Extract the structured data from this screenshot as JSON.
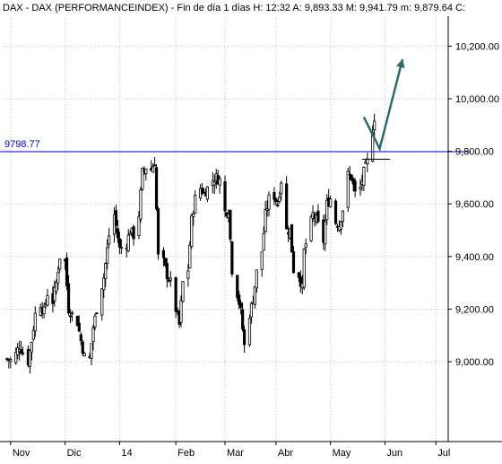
{
  "header": {
    "text": "DAX - DAX (PERFORMANCEINDEX) - Fin de día 1 días  H: 12:32  A: 9,893.33  M: 9,941.79  m: 9,879.64  C:"
  },
  "colors": {
    "background": "#ffffff",
    "candle_up": "#ffffff",
    "candle_down": "#000000",
    "candle_outline": "#000000",
    "resistance": "#0000cc",
    "arrow": "#2f6b6b",
    "grid": "#bfbfbf"
  },
  "chart_data": {
    "type": "candlestick",
    "title": "DAX - DAX (PERFORMANCEINDEX)",
    "y_axis": {
      "side": "right",
      "ticks": [
        "10,200.00",
        "10,000.00",
        "9,800.00",
        "9,600.00",
        "9,400.00",
        "9,200.00",
        "9,000.00"
      ],
      "tick_values": [
        10200,
        10000,
        9800,
        9600,
        9400,
        9200,
        9000
      ],
      "ylim": [
        8850,
        10350
      ]
    },
    "x_axis": {
      "ticks": [
        "Nov",
        "Dic",
        "14",
        "Feb",
        "Mar",
        "Abr",
        "May",
        "Jun",
        "Jul"
      ],
      "tick_dates": [
        "2013-11-01",
        "2013-12-02",
        "2014-01-02",
        "2014-02-03",
        "2014-03-03",
        "2014-04-01",
        "2014-05-02",
        "2014-06-02",
        "2014-07-01"
      ]
    },
    "grid": true,
    "resistance_line": {
      "value": 9798.77,
      "label": "9798.77"
    },
    "projection": {
      "points": [
        {
          "date": "2014-05-21",
          "value": 9930
        },
        {
          "date": "2014-05-30",
          "value": 9810
        },
        {
          "date": "2014-06-12",
          "value": 10150
        }
      ]
    },
    "short_level": {
      "start": "2014-05-20",
      "end": "2014-06-05",
      "value": 9770
    },
    "closes": [
      [
        "2013-10-30",
        9010
      ],
      [
        "2013-11-01",
        9005
      ],
      [
        "2013-11-04",
        9030
      ],
      [
        "2013-11-06",
        9060
      ],
      [
        "2013-11-08",
        9035
      ],
      [
        "2013-11-11",
        9000
      ],
      [
        "2013-11-13",
        9080
      ],
      [
        "2013-11-15",
        9180
      ],
      [
        "2013-11-18",
        9220
      ],
      [
        "2013-11-20",
        9190
      ],
      [
        "2013-11-22",
        9260
      ],
      [
        "2013-11-25",
        9230
      ],
      [
        "2013-11-27",
        9300
      ],
      [
        "2013-11-29",
        9400
      ],
      [
        "2013-12-02",
        9380
      ],
      [
        "2013-12-04",
        9200
      ],
      [
        "2013-12-06",
        9180
      ],
      [
        "2013-12-09",
        9150
      ],
      [
        "2013-12-11",
        9080
      ],
      [
        "2013-12-13",
        9020
      ],
      [
        "2013-12-16",
        9010
      ],
      [
        "2013-12-18",
        9130
      ],
      [
        "2013-12-20",
        9200
      ],
      [
        "2013-12-24",
        9320
      ],
      [
        "2013-12-27",
        9480
      ],
      [
        "2013-12-30",
        9560
      ],
      [
        "2014-01-02",
        9430
      ],
      [
        "2014-01-06",
        9450
      ],
      [
        "2014-01-08",
        9500
      ],
      [
        "2014-01-10",
        9480
      ],
      [
        "2014-01-13",
        9560
      ],
      [
        "2014-01-15",
        9720
      ],
      [
        "2014-01-17",
        9740
      ],
      [
        "2014-01-20",
        9730
      ],
      [
        "2014-01-22",
        9760
      ],
      [
        "2014-01-24",
        9400
      ],
      [
        "2014-01-27",
        9380
      ],
      [
        "2014-01-29",
        9330
      ],
      [
        "2014-01-31",
        9300
      ],
      [
        "2014-02-03",
        9200
      ],
      [
        "2014-02-05",
        9140
      ],
      [
        "2014-02-07",
        9300
      ],
      [
        "2014-02-10",
        9350
      ],
      [
        "2014-02-12",
        9540
      ],
      [
        "2014-02-14",
        9620
      ],
      [
        "2014-02-17",
        9660
      ],
      [
        "2014-02-19",
        9640
      ],
      [
        "2014-02-21",
        9660
      ],
      [
        "2014-02-24",
        9690
      ],
      [
        "2014-02-26",
        9700
      ],
      [
        "2014-02-28",
        9690
      ],
      [
        "2014-03-03",
        9570
      ],
      [
        "2014-03-05",
        9580
      ],
      [
        "2014-03-07",
        9350
      ],
      [
        "2014-03-10",
        9260
      ],
      [
        "2014-03-12",
        9190
      ],
      [
        "2014-03-14",
        9060
      ],
      [
        "2014-03-17",
        9180
      ],
      [
        "2014-03-19",
        9240
      ],
      [
        "2014-03-21",
        9340
      ],
      [
        "2014-03-24",
        9420
      ],
      [
        "2014-03-26",
        9560
      ],
      [
        "2014-03-28",
        9620
      ],
      [
        "2014-03-31",
        9630
      ],
      [
        "2014-04-02",
        9600
      ],
      [
        "2014-04-04",
        9690
      ],
      [
        "2014-04-07",
        9500
      ],
      [
        "2014-04-09",
        9500
      ],
      [
        "2014-04-11",
        9350
      ],
      [
        "2014-04-14",
        9330
      ],
      [
        "2014-04-16",
        9280
      ],
      [
        "2014-04-17",
        9420
      ],
      [
        "2014-04-22",
        9560
      ],
      [
        "2014-04-24",
        9540
      ],
      [
        "2014-04-28",
        9460
      ],
      [
        "2014-04-30",
        9600
      ],
      [
        "2014-05-02",
        9620
      ],
      [
        "2014-05-05",
        9530
      ],
      [
        "2014-05-07",
        9520
      ],
      [
        "2014-05-09",
        9580
      ],
      [
        "2014-05-12",
        9710
      ],
      [
        "2014-05-14",
        9700
      ],
      [
        "2014-05-16",
        9640
      ],
      [
        "2014-05-19",
        9660
      ],
      [
        "2014-05-21",
        9720
      ],
      [
        "2014-05-23",
        9760
      ],
      [
        "2014-05-27",
        9930
      ],
      [
        "2014-05-28",
        9890
      ]
    ]
  }
}
